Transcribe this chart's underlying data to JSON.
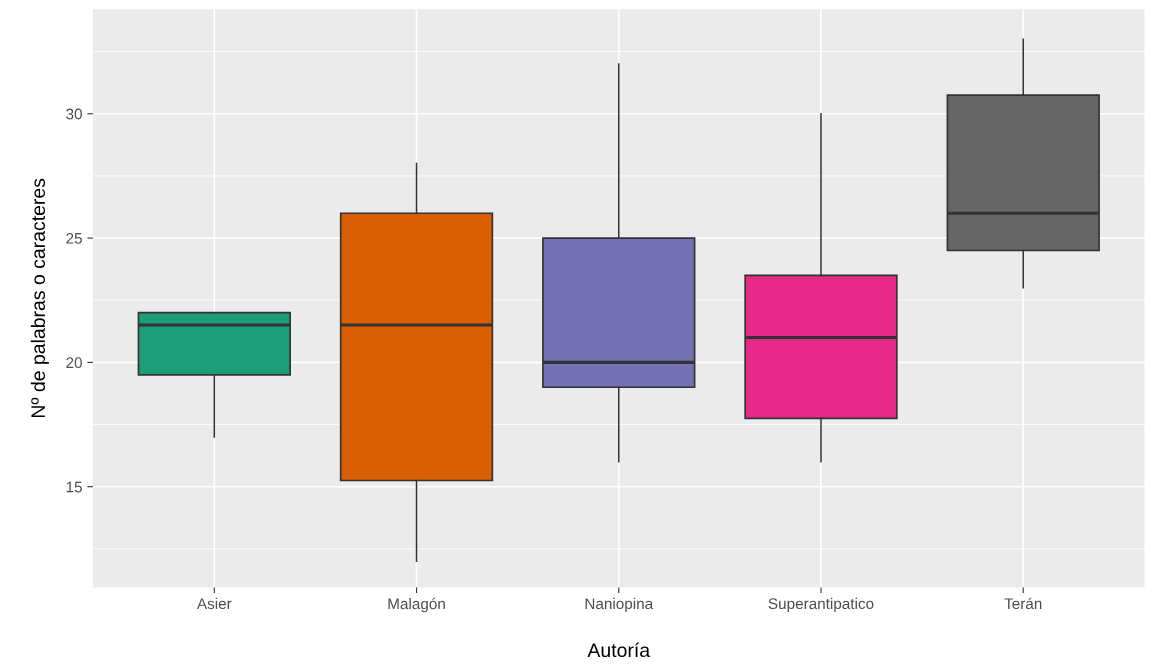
{
  "chart_data": {
    "type": "box",
    "xlabel": "Autoría",
    "ylabel": "Nº de palabras o caracteres",
    "categories": [
      "Asier",
      "Malagón",
      "Naniopina",
      "Superantipatico",
      "Terán"
    ],
    "colors": [
      "#1b9e77",
      "#d95f02",
      "#7570b3",
      "#e7298a",
      "#666666"
    ],
    "boxes": [
      {
        "low": 17,
        "q1": 19.5,
        "median": 21.5,
        "q3": 22,
        "high": 22
      },
      {
        "low": 12,
        "q1": 15.25,
        "median": 21.5,
        "q3": 26,
        "high": 28
      },
      {
        "low": 16,
        "q1": 19,
        "median": 20,
        "q3": 25,
        "high": 32
      },
      {
        "low": 16,
        "q1": 17.75,
        "median": 21,
        "q3": 23.5,
        "high": 30
      },
      {
        "low": 23,
        "q1": 24.5,
        "median": 26,
        "q3": 30.75,
        "high": 33
      }
    ],
    "ylim": [
      10.95,
      34.2
    ],
    "yticks": [
      15,
      20,
      25,
      30
    ],
    "grid": true,
    "legend": false
  }
}
